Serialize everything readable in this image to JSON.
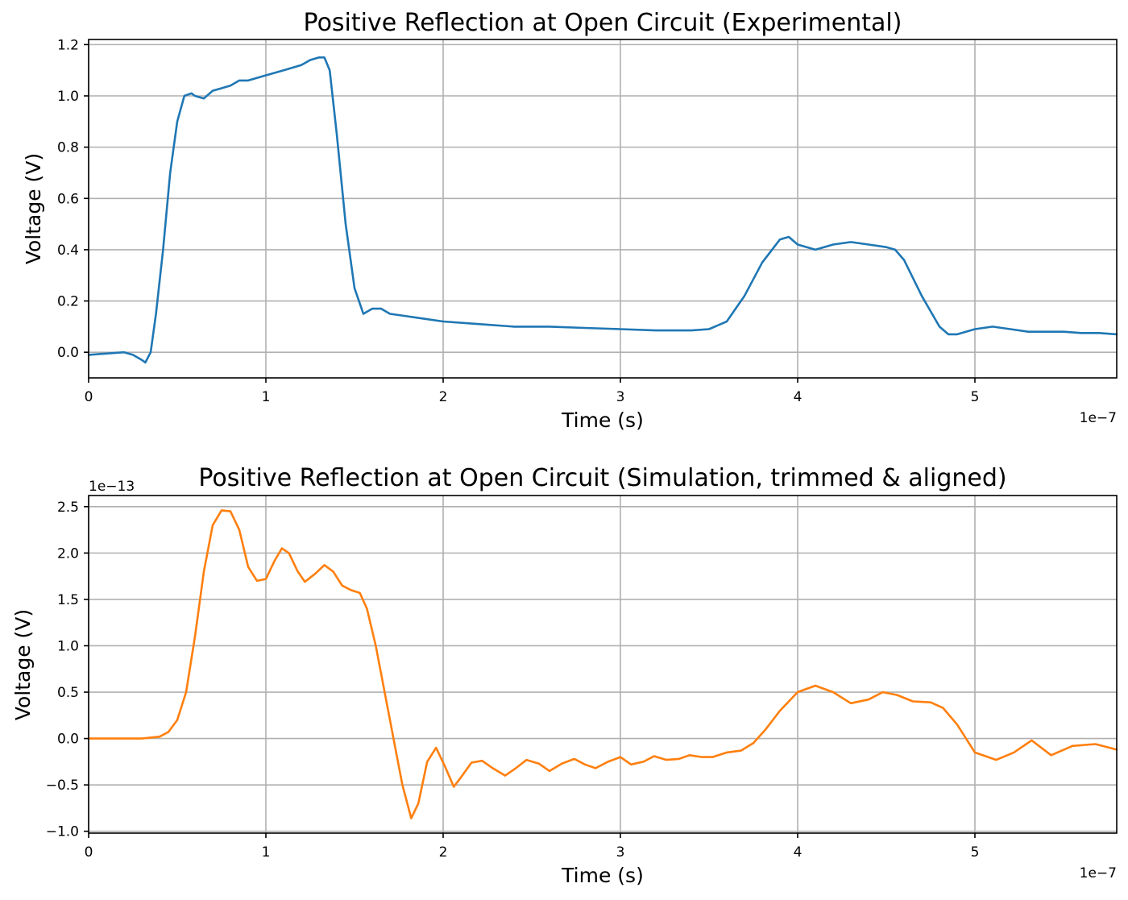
{
  "chart_data": [
    {
      "type": "line",
      "title": "Positive Reflection at Open Circuit (Experimental)",
      "xlabel": "Time (s)",
      "ylabel": "Voltage (V)",
      "x_offset_text": "1e−7",
      "y_offset_text": "",
      "xlim": [
        0,
        5.8
      ],
      "ylim": [
        -0.1,
        1.22
      ],
      "xticks": [
        0,
        1,
        2,
        3,
        4,
        5
      ],
      "xtick_labels": [
        "0",
        "1",
        "2",
        "3",
        "4",
        "5"
      ],
      "yticks": [
        0.0,
        0.2,
        0.4,
        0.6,
        0.8,
        1.0,
        1.2
      ],
      "ytick_labels": [
        "0.0",
        "0.2",
        "0.4",
        "0.6",
        "0.8",
        "1.0",
        "1.2"
      ],
      "grid": true,
      "color": "#1f77b4",
      "x_scale_note": "x values in units of 1e-7 s",
      "series": [
        {
          "x": [
            0,
            0.1,
            0.2,
            0.25,
            0.3,
            0.32,
            0.35,
            0.38,
            0.42,
            0.46,
            0.5,
            0.54,
            0.58,
            0.6,
            0.65,
            0.7,
            0.75,
            0.8,
            0.85,
            0.9,
            1.0,
            1.05,
            1.1,
            1.15,
            1.2,
            1.25,
            1.3,
            1.33,
            1.36,
            1.4,
            1.45,
            1.5,
            1.55,
            1.6,
            1.65,
            1.7,
            1.8,
            1.9,
            2.0,
            2.2,
            2.4,
            2.6,
            2.8,
            3.0,
            3.2,
            3.4,
            3.5,
            3.6,
            3.7,
            3.8,
            3.9,
            3.95,
            4.0,
            4.1,
            4.2,
            4.3,
            4.4,
            4.5,
            4.55,
            4.6,
            4.7,
            4.8,
            4.85,
            4.9,
            5.0,
            5.1,
            5.2,
            5.3,
            5.4,
            5.5,
            5.6,
            5.7,
            5.8
          ],
          "y": [
            -0.01,
            -0.005,
            0.0,
            -0.01,
            -0.03,
            -0.04,
            0.0,
            0.15,
            0.4,
            0.7,
            0.9,
            1.0,
            1.01,
            1.0,
            0.99,
            1.02,
            1.03,
            1.04,
            1.06,
            1.06,
            1.08,
            1.09,
            1.1,
            1.11,
            1.12,
            1.14,
            1.15,
            1.15,
            1.1,
            0.85,
            0.5,
            0.25,
            0.15,
            0.17,
            0.17,
            0.15,
            0.14,
            0.13,
            0.12,
            0.11,
            0.1,
            0.1,
            0.095,
            0.09,
            0.085,
            0.085,
            0.09,
            0.12,
            0.22,
            0.35,
            0.44,
            0.45,
            0.42,
            0.4,
            0.42,
            0.43,
            0.42,
            0.41,
            0.4,
            0.36,
            0.22,
            0.1,
            0.07,
            0.07,
            0.09,
            0.1,
            0.09,
            0.08,
            0.08,
            0.08,
            0.075,
            0.075,
            0.07
          ]
        }
      ]
    },
    {
      "type": "line",
      "title": "Positive Reflection at Open Circuit (Simulation, trimmed & aligned)",
      "xlabel": "Time (s)",
      "ylabel": "Voltage (V)",
      "x_offset_text": "1e−7",
      "y_offset_text": "1e−13",
      "xlim": [
        0,
        5.8
      ],
      "ylim": [
        -1.02,
        2.62
      ],
      "xticks": [
        0,
        1,
        2,
        3,
        4,
        5
      ],
      "xtick_labels": [
        "0",
        "1",
        "2",
        "3",
        "4",
        "5"
      ],
      "yticks": [
        -1.0,
        -0.5,
        0.0,
        0.5,
        1.0,
        1.5,
        2.0,
        2.5
      ],
      "ytick_labels": [
        "−1.0",
        "−0.5",
        "0.0",
        "0.5",
        "1.0",
        "1.5",
        "2.0",
        "2.5"
      ],
      "grid": true,
      "color": "#ff7f0e",
      "x_scale_note": "x values in units of 1e-7 s, y values in units of 1e-13 V",
      "series": [
        {
          "x": [
            0,
            0.3,
            0.4,
            0.45,
            0.5,
            0.55,
            0.6,
            0.65,
            0.7,
            0.75,
            0.8,
            0.85,
            0.9,
            0.95,
            1.0,
            1.05,
            1.09,
            1.13,
            1.18,
            1.22,
            1.28,
            1.33,
            1.38,
            1.43,
            1.48,
            1.53,
            1.57,
            1.62,
            1.67,
            1.72,
            1.77,
            1.82,
            1.86,
            1.91,
            1.96,
            2.01,
            2.06,
            2.1,
            2.16,
            2.22,
            2.28,
            2.35,
            2.41,
            2.47,
            2.54,
            2.6,
            2.67,
            2.74,
            2.8,
            2.86,
            2.93,
            3.0,
            3.06,
            3.13,
            3.19,
            3.26,
            3.33,
            3.39,
            3.46,
            3.52,
            3.6,
            3.68,
            3.75,
            3.82,
            3.9,
            4.0,
            4.1,
            4.2,
            4.3,
            4.4,
            4.48,
            4.56,
            4.65,
            4.75,
            4.82,
            4.9,
            5.0,
            5.12,
            5.22,
            5.32,
            5.43,
            5.55,
            5.68,
            5.8
          ],
          "y": [
            0.0,
            0.0,
            0.02,
            0.07,
            0.2,
            0.5,
            1.1,
            1.8,
            2.3,
            2.46,
            2.45,
            2.25,
            1.85,
            1.7,
            1.72,
            1.92,
            2.05,
            2.0,
            1.8,
            1.69,
            1.78,
            1.87,
            1.8,
            1.65,
            1.6,
            1.57,
            1.4,
            1.0,
            0.5,
            0.0,
            -0.5,
            -0.86,
            -0.7,
            -0.25,
            -0.1,
            -0.3,
            -0.52,
            -0.42,
            -0.26,
            -0.24,
            -0.32,
            -0.4,
            -0.32,
            -0.23,
            -0.27,
            -0.35,
            -0.27,
            -0.22,
            -0.28,
            -0.32,
            -0.25,
            -0.2,
            -0.28,
            -0.25,
            -0.19,
            -0.23,
            -0.22,
            -0.18,
            -0.2,
            -0.2,
            -0.15,
            -0.13,
            -0.05,
            0.1,
            0.3,
            0.5,
            0.57,
            0.5,
            0.38,
            0.42,
            0.5,
            0.47,
            0.4,
            0.39,
            0.33,
            0.15,
            -0.15,
            -0.23,
            -0.15,
            -0.02,
            -0.18,
            -0.08,
            -0.06,
            -0.12
          ]
        }
      ]
    }
  ]
}
